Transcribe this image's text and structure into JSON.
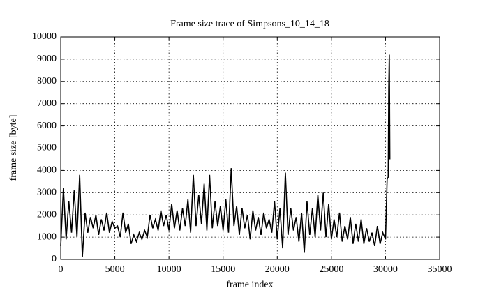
{
  "chart_data": {
    "type": "line",
    "title": "Frame size trace of Simpsons_10_14_18",
    "xlabel": "frame index",
    "ylabel": "frame size [byte]",
    "color": "#000000",
    "grid": true,
    "xlim": [
      0,
      35000
    ],
    "xticks": [
      0,
      5000,
      10000,
      15000,
      20000,
      25000,
      30000,
      35000
    ],
    "ylim": [
      0,
      10000
    ],
    "yticks": [
      0,
      1000,
      2000,
      3000,
      4000,
      5000,
      6000,
      7000,
      8000,
      9000,
      10000
    ],
    "x": [
      0,
      250,
      500,
      750,
      1000,
      1250,
      1500,
      1750,
      2000,
      2250,
      2500,
      2750,
      3000,
      3250,
      3500,
      3750,
      4000,
      4250,
      4500,
      4750,
      5000,
      5250,
      5500,
      5750,
      6000,
      6250,
      6500,
      6750,
      7000,
      7250,
      7500,
      7750,
      8000,
      8250,
      8500,
      8750,
      9000,
      9250,
      9500,
      9750,
      10000,
      10250,
      10500,
      10750,
      11000,
      11250,
      11500,
      11750,
      12000,
      12250,
      12500,
      12750,
      13000,
      13250,
      13500,
      13750,
      14000,
      14250,
      14500,
      14750,
      15000,
      15250,
      15500,
      15750,
      16000,
      16250,
      16500,
      16750,
      17000,
      17250,
      17500,
      17750,
      18000,
      18250,
      18500,
      18750,
      19000,
      19250,
      19500,
      19750,
      20000,
      20250,
      20500,
      20750,
      21000,
      21250,
      21500,
      21750,
      22000,
      22250,
      22500,
      22750,
      23000,
      23250,
      23500,
      23750,
      24000,
      24250,
      24500,
      24750,
      25000,
      25250,
      25500,
      25750,
      26000,
      26250,
      26500,
      26750,
      27000,
      27250,
      27500,
      27750,
      28000,
      28250,
      28500,
      28750,
      29000,
      29250,
      29500,
      29750,
      30000,
      30150,
      30250,
      30300,
      30350,
      30400
    ],
    "values": [
      600,
      3200,
      900,
      2600,
      1200,
      3100,
      1000,
      3800,
      100,
      2100,
      1200,
      1900,
      1400,
      2000,
      1100,
      1800,
      1300,
      2100,
      1200,
      1700,
      1400,
      1500,
      1000,
      2100,
      1200,
      1600,
      700,
      1100,
      800,
      1200,
      900,
      1300,
      1000,
      2000,
      1400,
      1800,
      1300,
      2200,
      1500,
      2000,
      1300,
      2500,
      1400,
      2200,
      1300,
      2300,
      1500,
      2700,
      1200,
      3800,
      1500,
      2900,
      1600,
      3400,
      1300,
      3800,
      1400,
      2600,
      1500,
      2400,
      1300,
      2700,
      1200,
      4100,
      1500,
      2400,
      1100,
      2300,
      1400,
      2000,
      900,
      2200,
      1300,
      1900,
      1100,
      2100,
      1400,
      1800,
      1200,
      2600,
      900,
      2300,
      500,
      3900,
      1100,
      2300,
      1300,
      1900,
      800,
      2100,
      300,
      2600,
      1100,
      2300,
      1000,
      2900,
      1300,
      3000,
      1000,
      2500,
      900,
      1800,
      1000,
      2100,
      800,
      1500,
      900,
      1900,
      700,
      1600,
      800,
      1800,
      700,
      1400,
      800,
      1200,
      600,
      1500,
      700,
      1200,
      900,
      3600,
      3700,
      7700,
      9200,
      4500
    ]
  }
}
